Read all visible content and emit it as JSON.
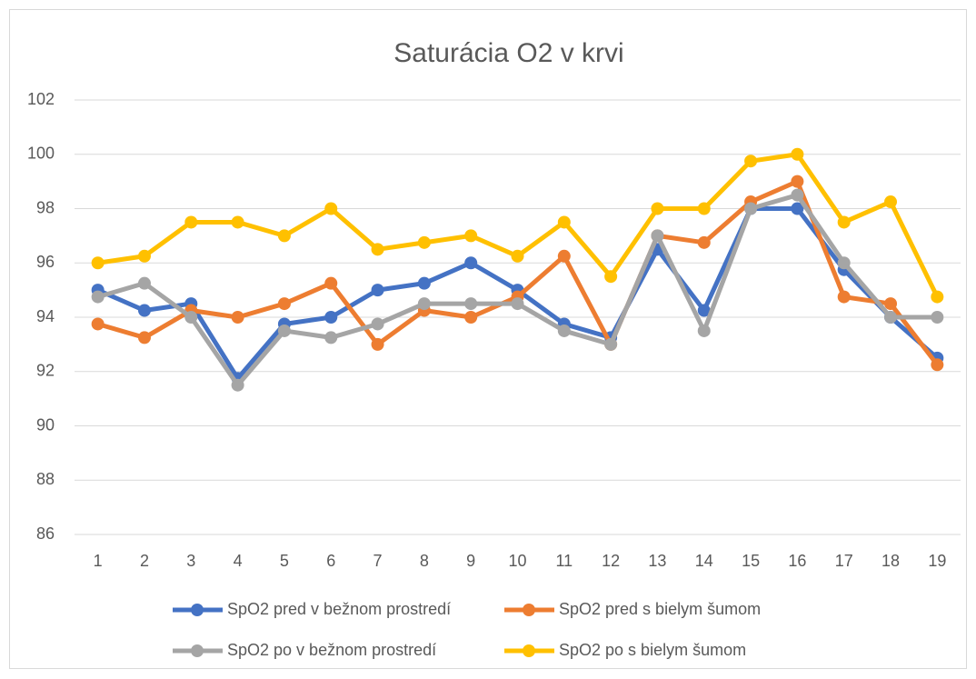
{
  "chart_data": {
    "type": "line",
    "title": "Saturácia O2 v krvi",
    "categories": [
      "1",
      "2",
      "3",
      "4",
      "5",
      "6",
      "7",
      "8",
      "9",
      "10",
      "11",
      "12",
      "13",
      "14",
      "15",
      "16",
      "17",
      "18",
      "19"
    ],
    "series": [
      {
        "name": "SpO2 pred v bežnom prostredí",
        "color": "#4472c4",
        "values": [
          95,
          94.25,
          94.5,
          91.75,
          93.75,
          94,
          95,
          95.25,
          96,
          95,
          93.75,
          93.25,
          96.5,
          94.25,
          98,
          98,
          95.75,
          94,
          92.5
        ]
      },
      {
        "name": "SpO2 pred s bielym šumom",
        "color": "#ed7d31",
        "values": [
          93.75,
          93.25,
          94.25,
          94,
          94.5,
          95.25,
          93,
          94.25,
          94,
          94.75,
          96.25,
          93,
          97,
          96.75,
          98.25,
          99,
          94.75,
          94.5,
          92.25
        ]
      },
      {
        "name": "SpO2 po v bežnom prostredí",
        "color": "#a5a5a5",
        "values": [
          94.75,
          95.25,
          94,
          91.5,
          93.5,
          93.25,
          93.75,
          94.5,
          94.5,
          94.5,
          93.5,
          93,
          97,
          93.5,
          98,
          98.5,
          96,
          94,
          94
        ]
      },
      {
        "name": "SpO2 po s bielym šumom",
        "color": "#ffc000",
        "values": [
          96,
          96.25,
          97.5,
          97.5,
          97,
          98,
          96.5,
          96.75,
          97,
          96.25,
          97.5,
          95.5,
          98,
          98,
          99.75,
          100,
          97.5,
          98.25,
          94.75
        ]
      }
    ],
    "ylim": [
      86,
      102
    ],
    "yticks": [
      86,
      88,
      90,
      92,
      94,
      96,
      98,
      100,
      102
    ],
    "grid": true,
    "legend": "bottom"
  }
}
